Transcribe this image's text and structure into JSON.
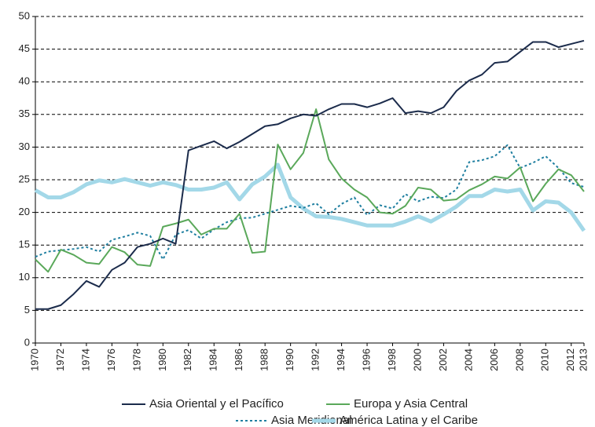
{
  "chart_data": {
    "type": "line",
    "x": [
      1970,
      1971,
      1972,
      1973,
      1974,
      1975,
      1976,
      1977,
      1978,
      1979,
      1980,
      1981,
      1982,
      1983,
      1984,
      1985,
      1986,
      1987,
      1988,
      1989,
      1990,
      1991,
      1992,
      1993,
      1994,
      1995,
      1996,
      1997,
      1998,
      1999,
      2000,
      2001,
      2002,
      2003,
      2004,
      2005,
      2006,
      2007,
      2008,
      2009,
      2010,
      2011,
      2012,
      2013
    ],
    "xlim": [
      1970,
      2013
    ],
    "xticks": [
      1970,
      1972,
      1974,
      1976,
      1978,
      1980,
      1982,
      1984,
      1986,
      1988,
      1990,
      1992,
      1994,
      1996,
      1998,
      2000,
      2002,
      2004,
      2006,
      2008,
      2010,
      2012,
      2013
    ],
    "ylim": [
      0,
      50
    ],
    "yticks": [
      0,
      5,
      10,
      15,
      20,
      25,
      30,
      35,
      40,
      45,
      50
    ],
    "grid": true,
    "legend": "bottom",
    "series": [
      {
        "name": "Asia Oriental y el Pacífico",
        "color": "#1b2b4b",
        "linewidth": 2,
        "linestyle": "solid",
        "values": [
          5.2,
          5.2,
          5.8,
          7.5,
          9.5,
          8.6,
          11.2,
          12.3,
          14.7,
          15.2,
          16.0,
          15.2,
          29.5,
          30.2,
          30.9,
          29.8,
          30.8,
          32.0,
          33.2,
          33.5,
          34.4,
          35.0,
          34.8,
          35.8,
          36.6,
          36.6,
          36.1,
          36.7,
          37.5,
          35.2,
          35.5,
          35.2,
          36.1,
          38.6,
          40.2,
          41.1,
          42.9,
          43.1,
          44.6,
          46.1,
          46.1,
          45.3,
          45.8,
          46.3
        ]
      },
      {
        "name": "Europa y Asia Central",
        "color": "#5aa85a",
        "linewidth": 2,
        "linestyle": "solid",
        "values": [
          12.8,
          10.9,
          14.3,
          13.5,
          12.3,
          12.1,
          14.7,
          13.9,
          12.0,
          11.8,
          17.8,
          18.3,
          18.9,
          16.6,
          17.5,
          17.5,
          19.8,
          13.8,
          14.0,
          30.4,
          26.6,
          29.1,
          35.8,
          28.1,
          25.2,
          23.5,
          22.3,
          20.0,
          19.8,
          21.0,
          23.8,
          23.5,
          21.8,
          22.0,
          23.4,
          24.3,
          25.5,
          25.2,
          26.9,
          21.7,
          24.4,
          26.6,
          25.7,
          23.2
        ]
      },
      {
        "name": "Asia Meridional",
        "color": "#1f7fa0",
        "linewidth": 2,
        "linestyle": "dotted",
        "values": [
          13.2,
          14.0,
          14.2,
          14.4,
          14.7,
          14.0,
          15.8,
          16.3,
          16.9,
          16.4,
          12.8,
          16.6,
          17.3,
          16.0,
          17.4,
          18.5,
          19.1,
          19.2,
          19.8,
          20.4,
          21.0,
          20.7,
          21.4,
          19.7,
          21.3,
          22.3,
          19.6,
          21.1,
          20.6,
          22.8,
          21.7,
          22.4,
          22.2,
          23.5,
          27.7,
          28.0,
          28.6,
          30.3,
          26.8,
          27.6,
          28.6,
          26.8,
          24.5,
          23.9
        ]
      },
      {
        "name": "América Latina y el Caribe",
        "color": "#a3d8e8",
        "linewidth": 5,
        "linestyle": "solid",
        "values": [
          23.4,
          22.3,
          22.3,
          23.1,
          24.3,
          24.9,
          24.6,
          25.1,
          24.6,
          24.1,
          24.6,
          24.2,
          23.5,
          23.5,
          23.8,
          24.6,
          22.0,
          24.3,
          25.5,
          27.3,
          22.3,
          20.6,
          19.4,
          19.3,
          19.0,
          18.5,
          18.0,
          18.0,
          18.0,
          18.6,
          19.4,
          18.6,
          19.7,
          20.9,
          22.5,
          22.5,
          23.5,
          23.2,
          23.5,
          20.3,
          21.7,
          21.5,
          20.0,
          17.2
        ]
      }
    ]
  }
}
